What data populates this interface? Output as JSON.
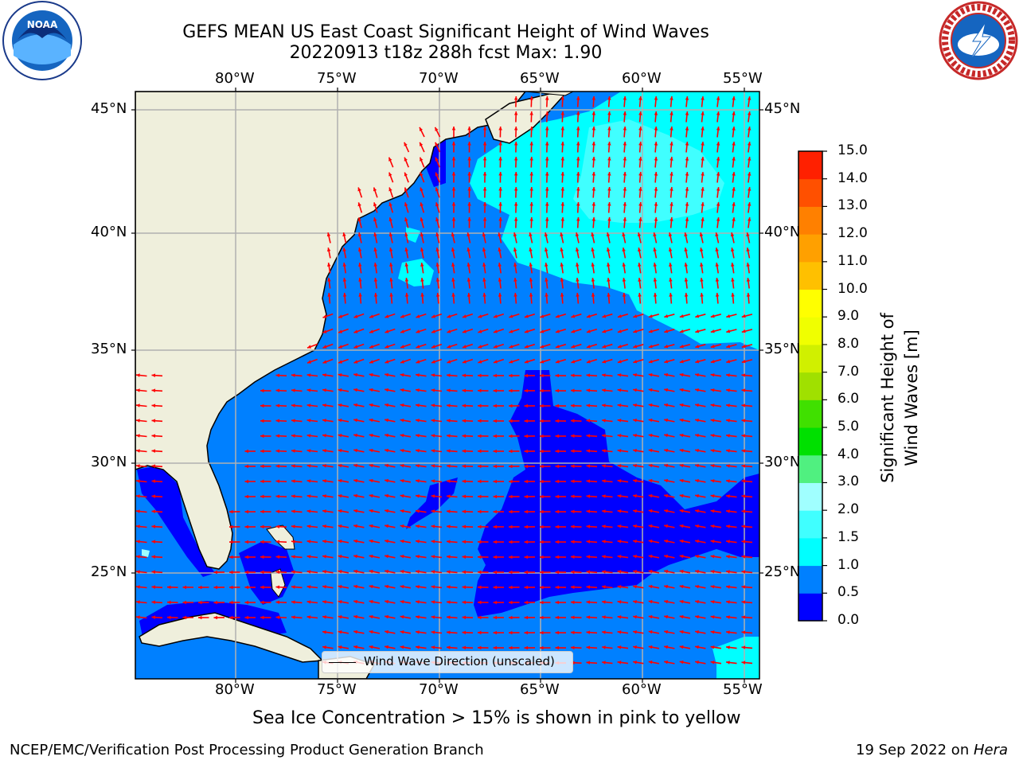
{
  "title_line1": "GEFS MEAN US East Coast Significant Height of Wind Waves",
  "title_line2": "20220913 t18z 288h fcst   Max: 1.90",
  "logos": {
    "left": "noaa-logo",
    "right": "nws-logo"
  },
  "map": {
    "lon_labels": [
      "80°W",
      "75°W",
      "70°W",
      "65°W",
      "60°W",
      "55°W"
    ],
    "lat_labels": [
      "45°N",
      "40°N",
      "35°N",
      "30°N",
      "25°N"
    ],
    "lon_range": [
      -85,
      -54.3
    ],
    "lat_range": [
      20.5,
      46
    ],
    "legend_text": "Wind Wave Direction (unscaled)",
    "colors": {
      "land": "#efefdc",
      "ocean_mid": "#0080ff",
      "ocean_low": "#0000ff",
      "ocean_high": "#00ffff",
      "arrow": "#ff0000"
    }
  },
  "colorbar": {
    "title": "Significant Height of Wind Waves [m]",
    "ticks": [
      "0.0",
      "0.5",
      "1.0",
      "1.5",
      "2.0",
      "3.0",
      "4.0",
      "5.0",
      "6.0",
      "7.0",
      "8.0",
      "9.0",
      "10.0",
      "11.0",
      "12.0",
      "13.0",
      "14.0",
      "15.0"
    ],
    "colors": [
      "#0000ff",
      "#0080ff",
      "#00ffff",
      "#40ffff",
      "#a0ffff",
      "#50f080",
      "#00e000",
      "#40e000",
      "#a0e000",
      "#d0f000",
      "#f0ff00",
      "#ffff00",
      "#ffc000",
      "#ffa000",
      "#ff8000",
      "#ff5000",
      "#ff2000",
      "#ff0000"
    ]
  },
  "caption": "Sea Ice Concentration > 15% is shown in pink to yellow",
  "footer_left": "NCEP/EMC/Verification Post Processing Product Generation Branch",
  "footer_date": "19 Sep 2022 on ",
  "footer_host": "Hera"
}
